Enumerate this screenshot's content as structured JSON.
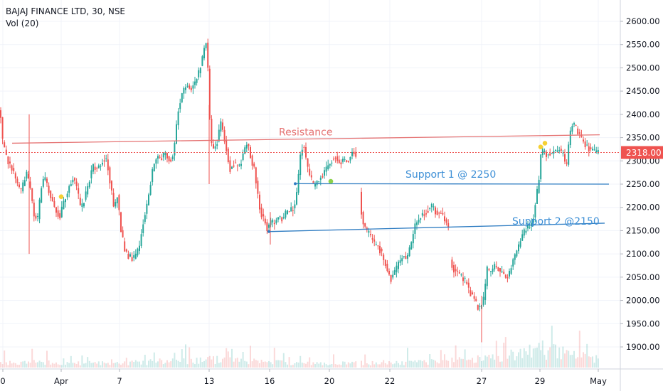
{
  "header": {
    "symbol_line": "BAJAJ FINANCE LTD, 30, NSE",
    "volume_line": "Vol (20)"
  },
  "colors": {
    "up": "#26a69a",
    "down": "#ef5350",
    "resistance": "#e57373",
    "support": "#2f7dc2",
    "support_text": "#3d8fd6",
    "price_badge": "#ef5350",
    "marker_yellow": "#f5d033",
    "marker_green": "#8bd14a"
  },
  "chart_data": {
    "type": "candlestick",
    "title": "BAJAJ FINANCE LTD, 30, NSE",
    "indicator": "Vol (20)",
    "x_tick_labels": [
      "0",
      "Apr",
      "7",
      "13",
      "16",
      "20",
      "22",
      "27",
      "29",
      "May"
    ],
    "y_ticks": [
      1900,
      1950,
      2000,
      2050,
      2100,
      2150,
      2200,
      2250,
      2300,
      2350,
      2400,
      2450,
      2500,
      2550,
      2600
    ],
    "ylim": [
      1862,
      2652
    ],
    "last_price": 2318.0,
    "last_price_label": "2318.00",
    "price_path": [
      [
        0,
        2410
      ],
      [
        4,
        2335
      ],
      [
        10,
        2300
      ],
      [
        17,
        2285
      ],
      [
        24,
        2250
      ],
      [
        30,
        2235
      ],
      [
        37,
        2275
      ],
      [
        43,
        2240
      ],
      [
        47,
        2185
      ],
      [
        53,
        2175
      ],
      [
        58,
        2245
      ],
      [
        63,
        2265
      ],
      [
        70,
        2225
      ],
      [
        77,
        2200
      ],
      [
        84,
        2180
      ],
      [
        90,
        2215
      ],
      [
        95,
        2235
      ],
      [
        102,
        2265
      ],
      [
        108,
        2240
      ],
      [
        114,
        2195
      ],
      [
        118,
        2215
      ],
      [
        124,
        2250
      ],
      [
        130,
        2290
      ],
      [
        137,
        2285
      ],
      [
        144,
        2300
      ],
      [
        150,
        2305
      ],
      [
        155,
        2250
      ],
      [
        160,
        2200
      ],
      [
        165,
        2225
      ],
      [
        170,
        2150
      ],
      [
        175,
        2110
      ],
      [
        181,
        2095
      ],
      [
        188,
        2090
      ],
      [
        195,
        2110
      ],
      [
        201,
        2165
      ],
      [
        208,
        2220
      ],
      [
        214,
        2275
      ],
      [
        220,
        2310
      ],
      [
        226,
        2305
      ],
      [
        232,
        2320
      ],
      [
        238,
        2300
      ],
      [
        244,
        2315
      ],
      [
        250,
        2405
      ],
      [
        256,
        2445
      ],
      [
        262,
        2465
      ],
      [
        268,
        2455
      ],
      [
        274,
        2470
      ],
      [
        279,
        2490
      ],
      [
        283,
        2510
      ],
      [
        287,
        2545
      ],
      [
        291,
        2560
      ],
      [
        294,
        2410
      ],
      [
        297,
        2340
      ],
      [
        300,
        2325
      ],
      [
        305,
        2340
      ],
      [
        311,
        2385
      ],
      [
        317,
        2335
      ],
      [
        323,
        2280
      ],
      [
        329,
        2295
      ],
      [
        336,
        2285
      ],
      [
        342,
        2315
      ],
      [
        348,
        2345
      ],
      [
        353,
        2300
      ],
      [
        358,
        2280
      ],
      [
        362,
        2230
      ],
      [
        366,
        2190
      ],
      [
        371,
        2175
      ],
      [
        376,
        2150
      ],
      [
        380,
        2170
      ],
      [
        385,
        2165
      ],
      [
        391,
        2180
      ],
      [
        397,
        2175
      ],
      [
        403,
        2190
      ],
      [
        409,
        2195
      ],
      [
        414,
        2200
      ],
      [
        418,
        2240
      ],
      [
        423,
        2325
      ],
      [
        427,
        2335
      ],
      [
        431,
        2295
      ],
      [
        436,
        2265
      ],
      [
        441,
        2245
      ],
      [
        447,
        2260
      ],
      [
        453,
        2270
      ],
      [
        459,
        2285
      ],
      [
        465,
        2300
      ],
      [
        471,
        2310
      ],
      [
        477,
        2295
      ],
      [
        483,
        2305
      ],
      [
        489,
        2300
      ],
      [
        495,
        2320
      ],
      [
        501,
        2315
      ],
      [
        507,
        2200
      ],
      [
        511,
        2160
      ],
      [
        515,
        2150
      ],
      [
        520,
        2140
      ],
      [
        526,
        2120
      ],
      [
        532,
        2115
      ],
      [
        538,
        2095
      ],
      [
        544,
        2065
      ],
      [
        549,
        2045
      ],
      [
        555,
        2060
      ],
      [
        560,
        2080
      ],
      [
        566,
        2095
      ],
      [
        572,
        2090
      ],
      [
        578,
        2120
      ],
      [
        584,
        2165
      ],
      [
        590,
        2180
      ],
      [
        596,
        2185
      ],
      [
        602,
        2195
      ],
      [
        608,
        2205
      ],
      [
        614,
        2185
      ],
      [
        620,
        2190
      ],
      [
        626,
        2170
      ],
      [
        631,
        2160
      ],
      [
        633,
        2080
      ],
      [
        638,
        2065
      ],
      [
        644,
        2060
      ],
      [
        649,
        2050
      ],
      [
        655,
        2040
      ],
      [
        660,
        2020
      ],
      [
        665,
        2005
      ],
      [
        670,
        1990
      ],
      [
        675,
        1980
      ],
      [
        680,
        2005
      ],
      [
        685,
        2070
      ],
      [
        690,
        2060
      ],
      [
        696,
        2075
      ],
      [
        702,
        2065
      ],
      [
        708,
        2055
      ],
      [
        714,
        2050
      ],
      [
        720,
        2080
      ],
      [
        726,
        2105
      ],
      [
        732,
        2130
      ],
      [
        738,
        2150
      ],
      [
        744,
        2160
      ],
      [
        749,
        2170
      ],
      [
        753,
        2215
      ],
      [
        757,
        2250
      ],
      [
        760,
        2310
      ],
      [
        764,
        2325
      ],
      [
        768,
        2315
      ],
      [
        774,
        2315
      ],
      [
        780,
        2320
      ],
      [
        786,
        2325
      ],
      [
        792,
        2310
      ],
      [
        796,
        2280
      ],
      [
        800,
        2350
      ],
      [
        805,
        2385
      ],
      [
        810,
        2370
      ],
      [
        815,
        2355
      ],
      [
        820,
        2340
      ],
      [
        825,
        2330
      ],
      [
        830,
        2325
      ],
      [
        836,
        2320
      ],
      [
        841,
        2318
      ]
    ],
    "volume_trend": [
      [
        0,
        0.3
      ],
      [
        160,
        0.22
      ],
      [
        300,
        0.45
      ],
      [
        440,
        0.2
      ],
      [
        520,
        0.25
      ],
      [
        630,
        0.35
      ],
      [
        700,
        0.55
      ],
      [
        760,
        1.0
      ],
      [
        841,
        0.45
      ]
    ],
    "annotations": [
      {
        "text": "Resistance",
        "color_key": "resistance",
        "line": [
          [
            17,
            2338
          ],
          [
            843,
            2356
          ]
        ]
      },
      {
        "text": "Support 1 @ 2250",
        "color_key": "support",
        "line": [
          [
            415,
            2251
          ],
          [
            856,
            2250
          ]
        ]
      },
      {
        "text": "Support 2 @2150",
        "color_key": "support",
        "line": [
          [
            378,
            2148
          ],
          [
            850,
            2166
          ]
        ]
      }
    ],
    "markers": [
      {
        "color_key": "marker_yellow",
        "x": 86,
        "y": 2223
      },
      {
        "color_key": "marker_green",
        "x": 465,
        "y": 2256
      },
      {
        "color_key": "marker_yellow",
        "x": 760,
        "y": 2330
      },
      {
        "color_key": "marker_yellow",
        "x": 766,
        "y": 2338
      }
    ],
    "grid": true
  }
}
